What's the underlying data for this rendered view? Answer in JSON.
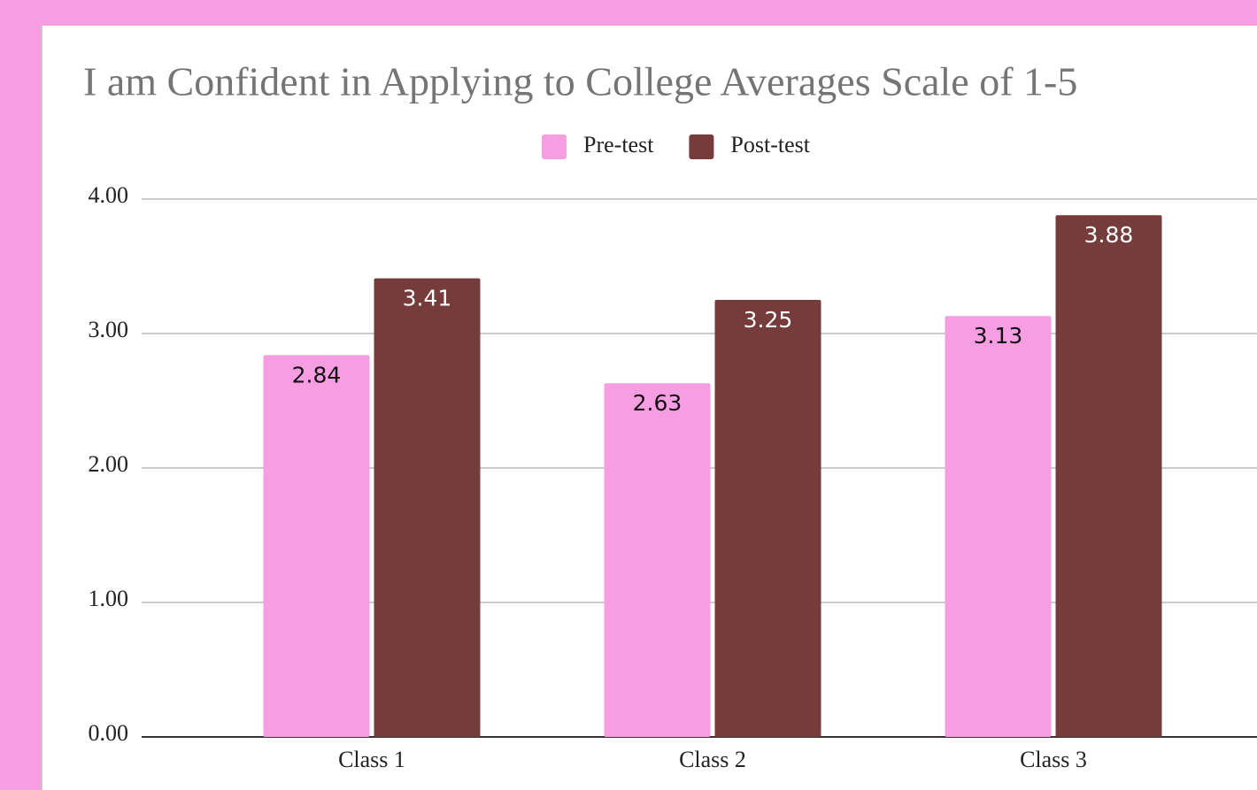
{
  "chart_data": {
    "type": "bar",
    "title": "I am Confident in Applying to College Averages Scale of 1-5",
    "categories": [
      "Class 1",
      "Class 2",
      "Class 3"
    ],
    "series": [
      {
        "name": "Pre-test",
        "color": "#f79ee3",
        "values": [
          2.84,
          2.63,
          3.13
        ]
      },
      {
        "name": "Post-test",
        "color": "#763c3b",
        "values": [
          3.41,
          3.25,
          3.88
        ]
      }
    ],
    "ylim": [
      0,
      4
    ],
    "yticks": [
      {
        "value": 0,
        "label": "0.00"
      },
      {
        "value": 1,
        "label": "1.00"
      },
      {
        "value": 2,
        "label": "2.00"
      },
      {
        "value": 3,
        "label": "3.00"
      },
      {
        "value": 4,
        "label": "4.00"
      }
    ],
    "grid": true,
    "legend": "top"
  }
}
